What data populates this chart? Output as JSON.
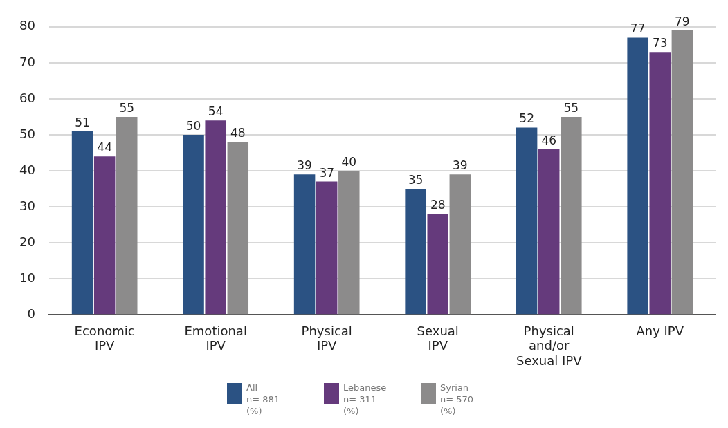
{
  "chart_data": {
    "type": "bar",
    "categories": [
      "Economic\nIPV",
      "Emotional\nIPV",
      "Physical\nIPV",
      "Sexual\nIPV",
      "Physical\nand/or\nSexual IPV",
      "Any IPV"
    ],
    "series": [
      {
        "name": "All\nn= 881\n(%)",
        "color": "#2b5283",
        "values": [
          51,
          50,
          39,
          35,
          52,
          77
        ]
      },
      {
        "name": "Lebanese\nn= 311\n(%)",
        "color": "#653a7c",
        "values": [
          44,
          54,
          37,
          28,
          46,
          73
        ]
      },
      {
        "name": "Syrian\nn= 570\n(%)",
        "color": "#8c8b8b",
        "values": [
          55,
          48,
          40,
          39,
          55,
          79
        ]
      }
    ],
    "ylim": [
      0,
      80
    ],
    "yticks": [
      0,
      10,
      20,
      30,
      40,
      50,
      60,
      70,
      80
    ],
    "grid": "y",
    "data_labels": true,
    "legend": "bottom"
  }
}
